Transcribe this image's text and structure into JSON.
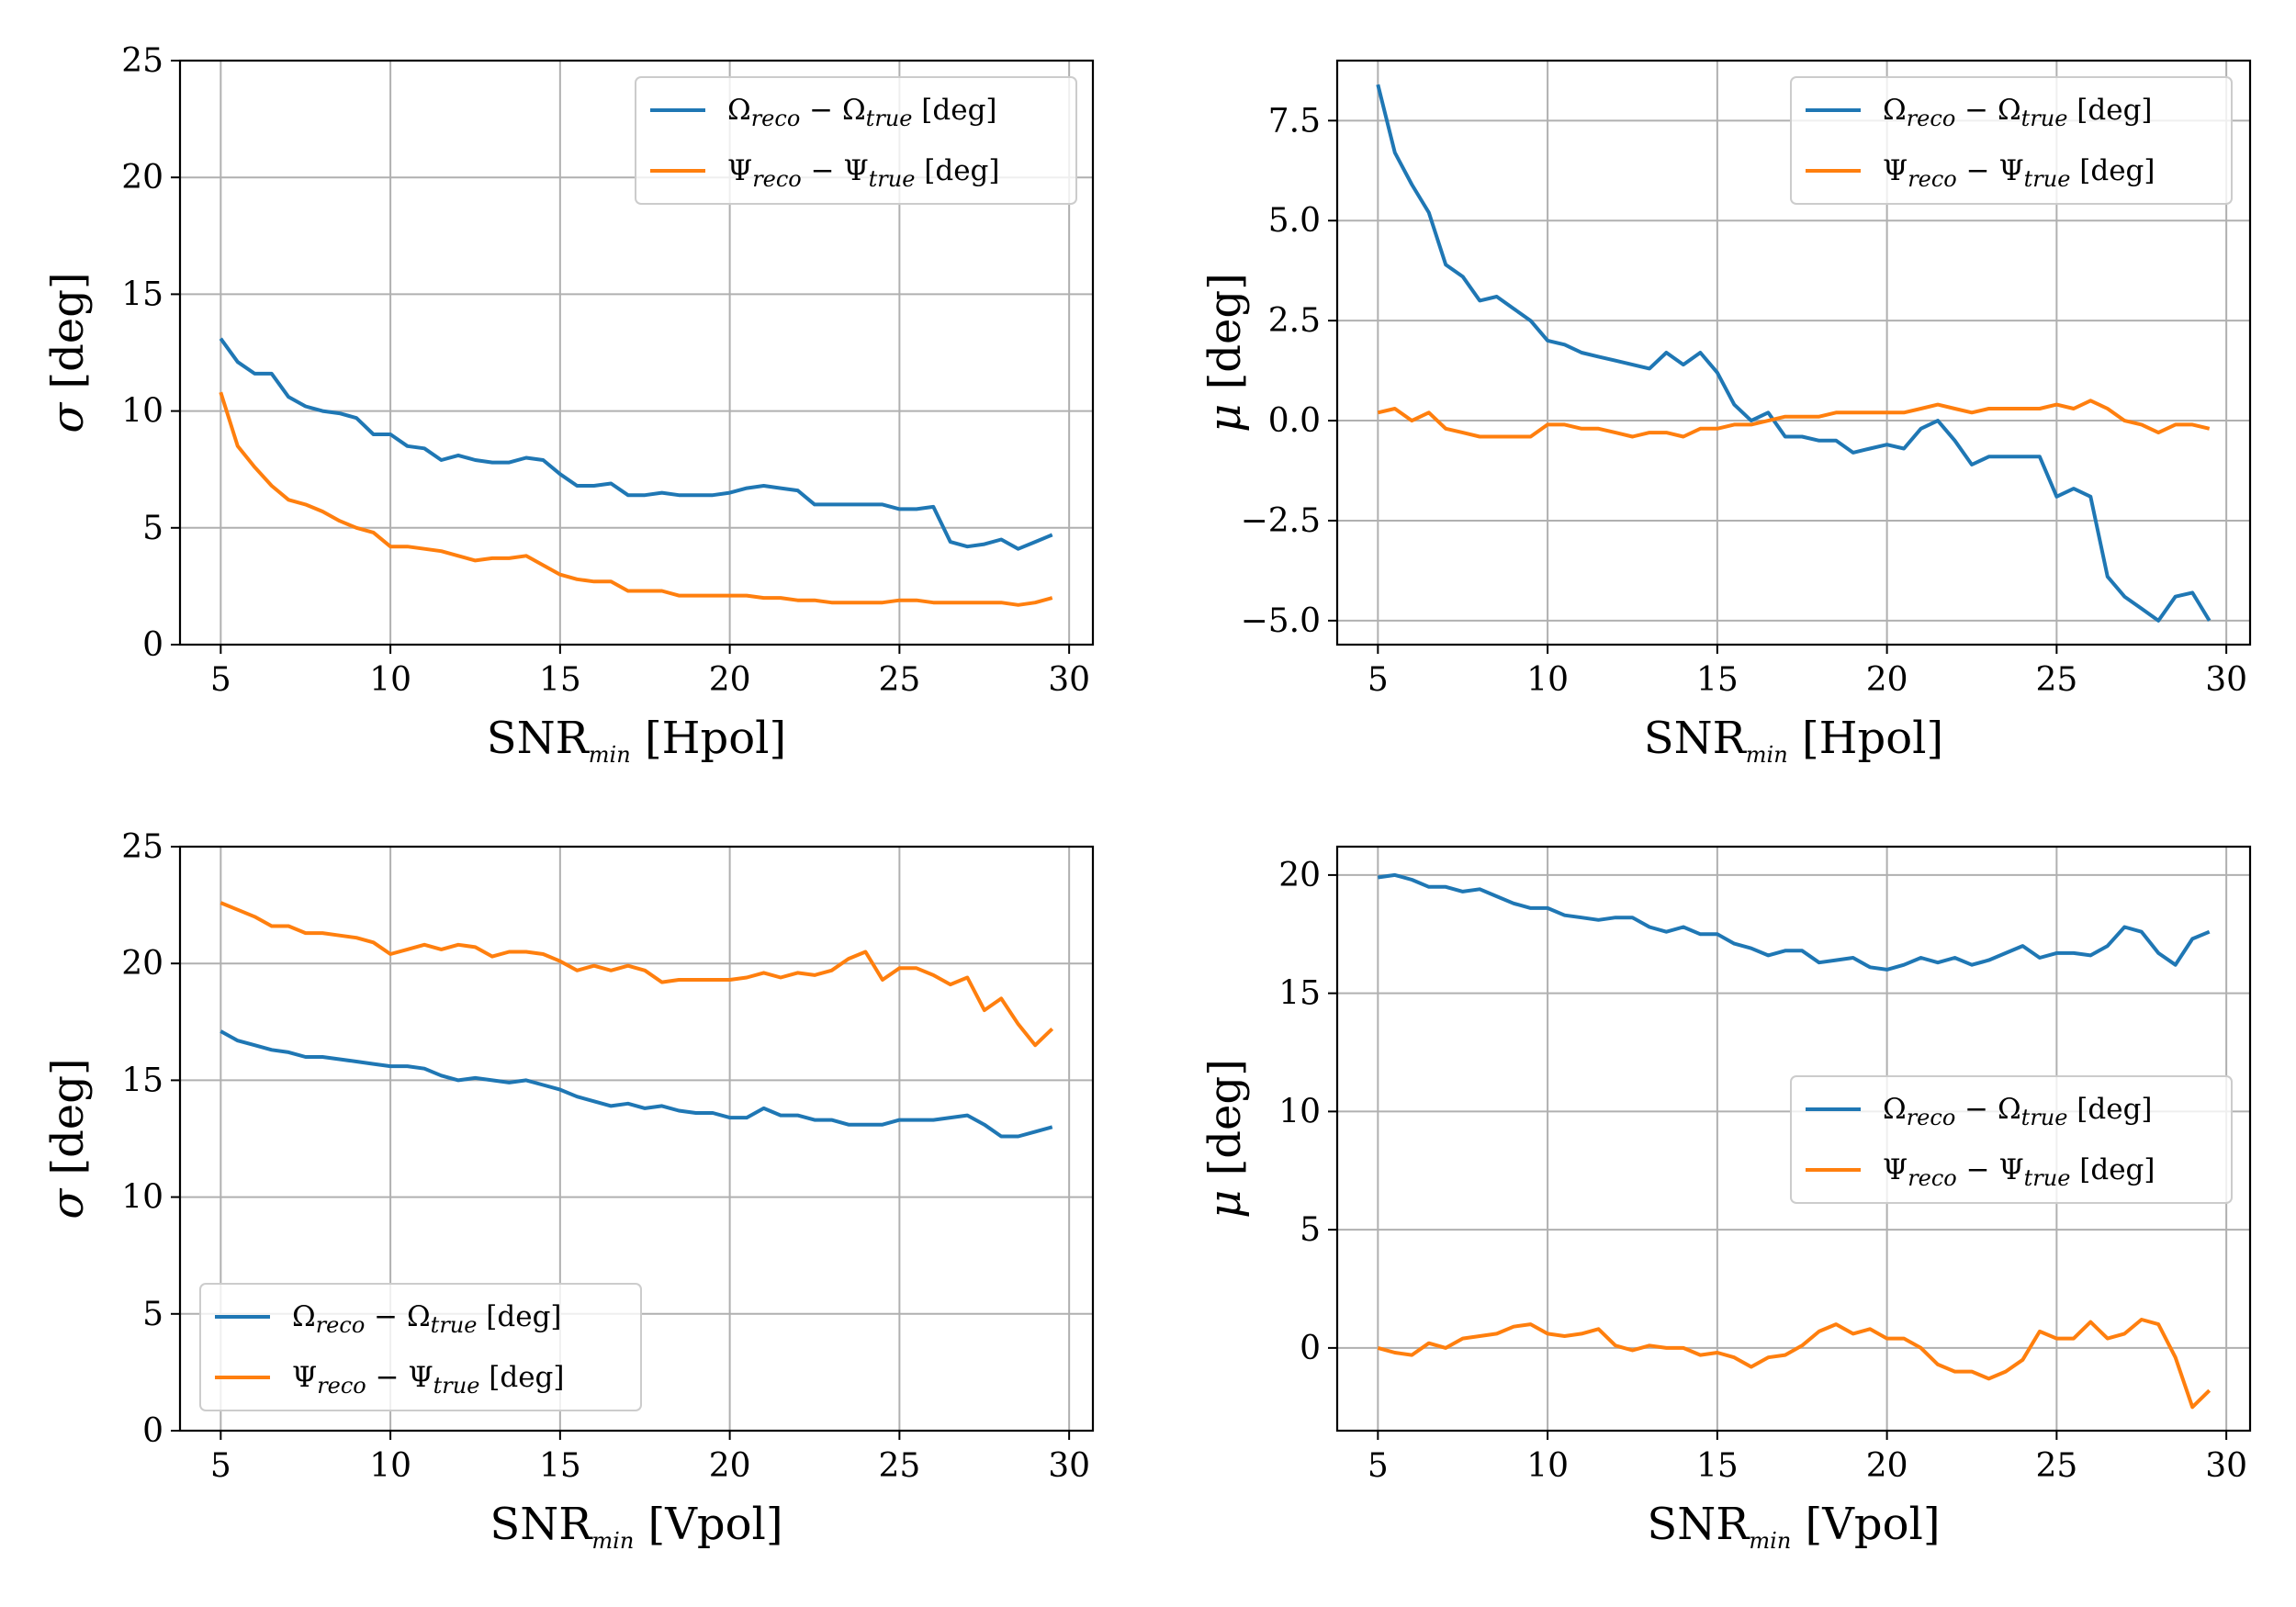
{
  "colors": {
    "omega": "#1f77b4",
    "psi": "#ff7f0e"
  },
  "legend_labels": {
    "omega": {
      "sym": "Ω",
      "sub1": "reco",
      "mid": " − Ω",
      "sub2": "true",
      "unit": " [deg]"
    },
    "psi": {
      "sym": "Ψ",
      "sub1": "reco",
      "mid": " − Ψ",
      "sub2": "true",
      "unit": " [deg]"
    }
  },
  "chart_data": [
    {
      "type": "line",
      "xlabel": {
        "main": "SNR",
        "sub": "min",
        "rest": " [Hpol]"
      },
      "ylabel": {
        "main": "σ",
        "rest": " [deg]"
      },
      "xlim": [
        3.8,
        30.7
      ],
      "ylim": [
        0,
        25
      ],
      "xticks": [
        "5",
        "10",
        "15",
        "20",
        "25",
        "30"
      ],
      "yticks": [
        "0",
        "5",
        "10",
        "15",
        "20",
        "25"
      ],
      "grid": true,
      "legend": "upper right",
      "x": [
        5,
        5.5,
        6,
        6.5,
        7,
        7.5,
        8,
        8.5,
        9,
        9.5,
        10,
        10.5,
        11,
        11.5,
        12,
        12.5,
        13,
        13.5,
        14,
        14.5,
        15,
        15.5,
        16,
        16.5,
        17,
        17.5,
        18,
        18.5,
        19,
        19.5,
        20,
        20.5,
        21,
        21.5,
        22,
        22.5,
        23,
        23.5,
        24,
        24.5,
        25,
        25.5,
        26,
        26.5,
        27,
        27.5,
        28,
        28.5,
        29,
        29.5
      ],
      "series": [
        {
          "name": "omega",
          "values": [
            13.1,
            12.1,
            11.6,
            11.6,
            10.6,
            10.2,
            10.0,
            9.9,
            9.7,
            9.0,
            9.0,
            8.5,
            8.4,
            7.9,
            8.1,
            7.9,
            7.8,
            7.8,
            8.0,
            7.9,
            7.3,
            6.8,
            6.8,
            6.9,
            6.4,
            6.4,
            6.5,
            6.4,
            6.4,
            6.4,
            6.5,
            6.7,
            6.8,
            6.7,
            6.6,
            6.0,
            6.0,
            6.0,
            6.0,
            6.0,
            5.8,
            5.8,
            5.9,
            4.4,
            4.2,
            4.3,
            4.5,
            4.1,
            4.4,
            4.7
          ]
        },
        {
          "name": "psi",
          "values": [
            10.8,
            8.5,
            7.6,
            6.8,
            6.2,
            6.0,
            5.7,
            5.3,
            5.0,
            4.8,
            4.2,
            4.2,
            4.1,
            4.0,
            3.8,
            3.6,
            3.7,
            3.7,
            3.8,
            3.4,
            3.0,
            2.8,
            2.7,
            2.7,
            2.3,
            2.3,
            2.3,
            2.1,
            2.1,
            2.1,
            2.1,
            2.1,
            2.0,
            2.0,
            1.9,
            1.9,
            1.8,
            1.8,
            1.8,
            1.8,
            1.9,
            1.9,
            1.8,
            1.8,
            1.8,
            1.8,
            1.8,
            1.7,
            1.8,
            2.0
          ]
        }
      ]
    },
    {
      "type": "line",
      "xlabel": {
        "main": "SNR",
        "sub": "min",
        "rest": " [Hpol]"
      },
      "ylabel": {
        "main": "μ",
        "rest": " [deg]"
      },
      "xlim": [
        3.8,
        30.7
      ],
      "ylim": [
        -5.6,
        9.0
      ],
      "xticks": [
        "5",
        "10",
        "15",
        "20",
        "25",
        "30"
      ],
      "yticks": [
        "−5.0",
        "−2.5",
        "0.0",
        "2.5",
        "5.0",
        "7.5"
      ],
      "ytick_values": [
        -5.0,
        -2.5,
        0.0,
        2.5,
        5.0,
        7.5
      ],
      "grid": true,
      "legend": "upper right",
      "x": [
        5,
        5.5,
        6,
        6.5,
        7,
        7.5,
        8,
        8.5,
        9,
        9.5,
        10,
        10.5,
        11,
        11.5,
        12,
        12.5,
        13,
        13.5,
        14,
        14.5,
        15,
        15.5,
        16,
        16.5,
        17,
        17.5,
        18,
        18.5,
        19,
        19.5,
        20,
        20.5,
        21,
        21.5,
        22,
        22.5,
        23,
        23.5,
        24,
        24.5,
        25,
        25.5,
        26,
        26.5,
        27,
        27.5,
        28,
        28.5,
        29,
        29.5
      ],
      "series": [
        {
          "name": "omega",
          "values": [
            8.4,
            6.7,
            5.9,
            5.2,
            3.9,
            3.6,
            3.0,
            3.1,
            2.8,
            2.5,
            2.0,
            1.9,
            1.7,
            1.6,
            1.5,
            1.4,
            1.3,
            1.7,
            1.4,
            1.7,
            1.2,
            0.4,
            0.0,
            0.2,
            -0.4,
            -0.4,
            -0.5,
            -0.5,
            -0.8,
            -0.7,
            -0.6,
            -0.7,
            -0.2,
            0.0,
            -0.5,
            -1.1,
            -0.9,
            -0.9,
            -0.9,
            -0.9,
            -1.9,
            -1.7,
            -1.9,
            -3.9,
            -4.4,
            -4.7,
            -5.0,
            -4.4,
            -4.3,
            -5.0
          ]
        },
        {
          "name": "psi",
          "values": [
            0.2,
            0.3,
            0.0,
            0.2,
            -0.2,
            -0.3,
            -0.4,
            -0.4,
            -0.4,
            -0.4,
            -0.1,
            -0.1,
            -0.2,
            -0.2,
            -0.3,
            -0.4,
            -0.3,
            -0.3,
            -0.4,
            -0.2,
            -0.2,
            -0.1,
            -0.1,
            0.0,
            0.1,
            0.1,
            0.1,
            0.2,
            0.2,
            0.2,
            0.2,
            0.2,
            0.3,
            0.4,
            0.3,
            0.2,
            0.3,
            0.3,
            0.3,
            0.3,
            0.4,
            0.3,
            0.5,
            0.3,
            0.0,
            -0.1,
            -0.3,
            -0.1,
            -0.1,
            -0.2
          ]
        }
      ]
    },
    {
      "type": "line",
      "xlabel": {
        "main": "SNR",
        "sub": "min",
        "rest": " [Vpol]"
      },
      "ylabel": {
        "main": "σ",
        "rest": " [deg]"
      },
      "xlim": [
        3.8,
        30.7
      ],
      "ylim": [
        0,
        25
      ],
      "xticks": [
        "5",
        "10",
        "15",
        "20",
        "25",
        "30"
      ],
      "yticks": [
        "0",
        "5",
        "10",
        "15",
        "20",
        "25"
      ],
      "grid": true,
      "legend": "lower left",
      "x": [
        5,
        5.5,
        6,
        6.5,
        7,
        7.5,
        8,
        8.5,
        9,
        9.5,
        10,
        10.5,
        11,
        11.5,
        12,
        12.5,
        13,
        13.5,
        14,
        14.5,
        15,
        15.5,
        16,
        16.5,
        17,
        17.5,
        18,
        18.5,
        19,
        19.5,
        20,
        20.5,
        21,
        21.5,
        22,
        22.5,
        23,
        23.5,
        24,
        24.5,
        25,
        25.5,
        26,
        26.5,
        27,
        27.5,
        28,
        28.5,
        29,
        29.5
      ],
      "series": [
        {
          "name": "omega",
          "values": [
            17.1,
            16.7,
            16.5,
            16.3,
            16.2,
            16.0,
            16.0,
            15.9,
            15.8,
            15.7,
            15.6,
            15.6,
            15.5,
            15.2,
            15.0,
            15.1,
            15.0,
            14.9,
            15.0,
            14.8,
            14.6,
            14.3,
            14.1,
            13.9,
            14.0,
            13.8,
            13.9,
            13.7,
            13.6,
            13.6,
            13.4,
            13.4,
            13.8,
            13.5,
            13.5,
            13.3,
            13.3,
            13.1,
            13.1,
            13.1,
            13.3,
            13.3,
            13.3,
            13.4,
            13.5,
            13.1,
            12.6,
            12.6,
            12.8,
            13.0
          ]
        },
        {
          "name": "psi",
          "values": [
            22.6,
            22.3,
            22.0,
            21.6,
            21.6,
            21.3,
            21.3,
            21.2,
            21.1,
            20.9,
            20.4,
            20.6,
            20.8,
            20.6,
            20.8,
            20.7,
            20.3,
            20.5,
            20.5,
            20.4,
            20.1,
            19.7,
            19.9,
            19.7,
            19.9,
            19.7,
            19.2,
            19.3,
            19.3,
            19.3,
            19.3,
            19.4,
            19.6,
            19.4,
            19.6,
            19.5,
            19.7,
            20.2,
            20.5,
            19.3,
            19.8,
            19.8,
            19.5,
            19.1,
            19.4,
            18.0,
            18.5,
            17.4,
            16.5,
            17.2
          ]
        }
      ]
    },
    {
      "type": "line",
      "xlabel": {
        "main": "SNR",
        "sub": "min",
        "rest": " [Vpol]"
      },
      "ylabel": {
        "main": "μ",
        "rest": " [deg]"
      },
      "xlim": [
        3.8,
        30.7
      ],
      "ylim": [
        -3.5,
        21.2
      ],
      "xticks": [
        "5",
        "10",
        "15",
        "20",
        "25",
        "30"
      ],
      "yticks": [
        "0",
        "5",
        "10",
        "15",
        "20"
      ],
      "ytick_values": [
        0,
        5,
        10,
        15,
        20
      ],
      "grid": true,
      "legend": "center right",
      "x": [
        5,
        5.5,
        6,
        6.5,
        7,
        7.5,
        8,
        8.5,
        9,
        9.5,
        10,
        10.5,
        11,
        11.5,
        12,
        12.5,
        13,
        13.5,
        14,
        14.5,
        15,
        15.5,
        16,
        16.5,
        17,
        17.5,
        18,
        18.5,
        19,
        19.5,
        20,
        20.5,
        21,
        21.5,
        22,
        22.5,
        23,
        23.5,
        24,
        24.5,
        25,
        25.5,
        26,
        26.5,
        27,
        27.5,
        28,
        28.5,
        29,
        29.5
      ],
      "series": [
        {
          "name": "omega",
          "values": [
            19.9,
            20.0,
            19.8,
            19.5,
            19.5,
            19.3,
            19.4,
            19.1,
            18.8,
            18.6,
            18.6,
            18.3,
            18.2,
            18.1,
            18.2,
            18.2,
            17.8,
            17.6,
            17.8,
            17.5,
            17.5,
            17.1,
            16.9,
            16.6,
            16.8,
            16.8,
            16.3,
            16.4,
            16.5,
            16.1,
            16.0,
            16.2,
            16.5,
            16.3,
            16.5,
            16.2,
            16.4,
            16.7,
            17.0,
            16.5,
            16.7,
            16.7,
            16.6,
            17.0,
            17.8,
            17.6,
            16.7,
            16.2,
            17.3,
            17.6
          ]
        },
        {
          "name": "psi",
          "values": [
            0.0,
            -0.2,
            -0.3,
            0.2,
            0.0,
            0.4,
            0.5,
            0.6,
            0.9,
            1.0,
            0.6,
            0.5,
            0.6,
            0.8,
            0.1,
            -0.1,
            0.1,
            0.0,
            0.0,
            -0.3,
            -0.2,
            -0.4,
            -0.8,
            -0.4,
            -0.3,
            0.1,
            0.7,
            1.0,
            0.6,
            0.8,
            0.4,
            0.4,
            0.0,
            -0.7,
            -1.0,
            -1.0,
            -1.3,
            -1.0,
            -0.5,
            0.7,
            0.4,
            0.4,
            1.1,
            0.4,
            0.6,
            1.2,
            1.0,
            -0.4,
            -2.5,
            -1.8
          ]
        }
      ]
    }
  ]
}
